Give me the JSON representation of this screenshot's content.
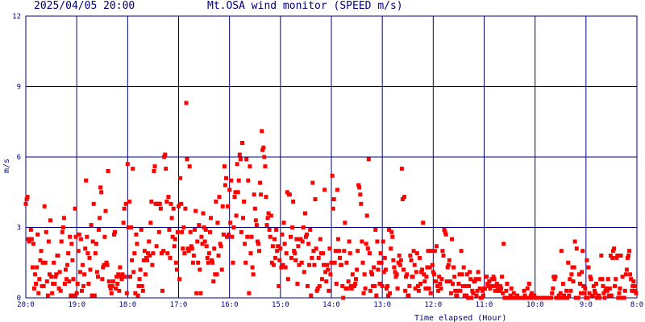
{
  "header": {
    "datetime": "2025/04/05 20:00",
    "title": "Mt.OSA wind monitor (SPEED m/s)"
  },
  "chart_data": {
    "type": "scatter",
    "xlabel": "Time elapsed (Hour)",
    "ylabel": "m/s",
    "x_tick_labels": [
      "20:0",
      "19:0",
      "18:0",
      "17:0",
      "16:0",
      "15:0",
      "14:0",
      "13:0",
      "12:0",
      "11:0",
      "10:0",
      "9:0",
      "8:0"
    ],
    "x_range_hours_elapsed": [
      0,
      12
    ],
    "y_ticks": [
      0,
      3,
      6,
      9,
      12
    ],
    "ylim": [
      0,
      12
    ],
    "grid": true,
    "colors": {
      "grid": "#00007f",
      "points": "#ff0000",
      "text": "#00007f",
      "background": "#ffffff"
    },
    "points_per_hour": 60,
    "speed": [
      4.0,
      4.2,
      4.3,
      2.5,
      2.4,
      2.5,
      2.9,
      2.5,
      1.3,
      2.3,
      0.4,
      1.0,
      0.6,
      1.3,
      2.7,
      0.2,
      0.8,
      1.6,
      2.0,
      0.5,
      1.5,
      0.5,
      3.9,
      1.5,
      2.8,
      0.7,
      0.1,
      2.4,
      1.0,
      3.3,
      0.9,
      0.2,
      0.6,
      1.5,
      0.6,
      0.9,
      1.0,
      1.8,
      1.8,
      0.4,
      1.1,
      0.3,
      2.4,
      2.8,
      3.0,
      3.4,
      0.6,
      1.2,
      0.8,
      1.4,
      1.9,
      0.7,
      2.6,
      0.1,
      2.3,
      1.6,
      0.8,
      0.1,
      3.8,
      2.6,
      0.2,
      0.6,
      2.0,
      2.7,
      1.1,
      2.5,
      0.3,
      1.4,
      0.5,
      1.0,
      2.1,
      5.0,
      2.6,
      1.9,
      0.6,
      1.7,
      1.2,
      3.1,
      0.1,
      2.4,
      4.0,
      0.1,
      1.9,
      2.3,
      1.1,
      0.9,
      2.9,
      3.4,
      4.7,
      4.5,
      0.8,
      1.3,
      1.4,
      2.6,
      3.7,
      1.5,
      1.4,
      5.4,
      0.7,
      0.5,
      0.4,
      0.2,
      0.5,
      0.7,
      2.7,
      2.8,
      0.4,
      0.9,
      0.6,
      1.0,
      0.3,
      1.3,
      0.9,
      0.8,
      1.0,
      3.2,
      3.8,
      0.9,
      4.0,
      0.2,
      5.7,
      3.0,
      4.1,
      0.9,
      3.0,
      1.6,
      5.5,
      1.1,
      1.9,
      0.2,
      2.7,
      2.3,
      0.1,
      0.5,
      0.8,
      1.2,
      2.9,
      0.5,
      0.3,
      1.6,
      2.0,
      1.0,
      1.7,
      1.6,
      1.9,
      2.4,
      1.8,
      3.2,
      4.1,
      1.4,
      1.9,
      5.4,
      5.6,
      4.0,
      2.2,
      4.0,
      4.0,
      2.8,
      4.0,
      3.8,
      1.9,
      0.3,
      2.0,
      6.0,
      6.1,
      5.5,
      4.1,
      1.9,
      4.3,
      2.9,
      1.7,
      4.0,
      3.4,
      2.6,
      3.8,
      2.2,
      2.5,
      1.5,
      1.2,
      2.8,
      3.9,
      0.8,
      5.1,
      4.0,
      2.8,
      2.1,
      3.0,
      1.9,
      3.8,
      8.3,
      5.9,
      2.1,
      2.0,
      5.6,
      2.8,
      2.2,
      2.1,
      1.5,
      1.8,
      2.9,
      3.7,
      0.2,
      2.4,
      1.5,
      3.1,
      1.2,
      0.2,
      2.6,
      2.3,
      3.6,
      3.0,
      2.4,
      2.9,
      2.2,
      1.7,
      1.5,
      1.9,
      2.8,
      3.4,
      1.6,
      1.5,
      0.7,
      2.1,
      1.0,
      4.1,
      1.0,
      3.2,
      1.8,
      4.3,
      2.3,
      2.2,
      1.2,
      3.9,
      2.7,
      5.6,
      4.8,
      5.1,
      2.6,
      3.9,
      2.7,
      4.6,
      3.2,
      5.0,
      2.6,
      1.5,
      3.0,
      4.3,
      4.5,
      3.5,
      5.7,
      4.5,
      5.0,
      6.1,
      5.9,
      2.8,
      6.6,
      3.4,
      4.1,
      2.3,
      1.5,
      5.9,
      2.6,
      5.0,
      0.2,
      5.6,
      1.9,
      2.6,
      1.3,
      1.0,
      4.4,
      3.8,
      3.3,
      3.1,
      2.4,
      2.3,
      2.0,
      4.9,
      4.4,
      7.1,
      6.3,
      6.4,
      6.0,
      5.6,
      4.3,
      3.1,
      3.4,
      3.6,
      2.9,
      2.6,
      3.5,
      1.5,
      2.2,
      1.4,
      2.5,
      1.7,
      2.9,
      2.0,
      2.2,
      0.5,
      1.6,
      2.1,
      1.3,
      2.7,
      1.4,
      3.2,
      2.3,
      1.3,
      1.9,
      4.5,
      0.8,
      4.4,
      4.4,
      2.6,
      1.7,
      3.0,
      4.1,
      2.0,
      1.9,
      1.6,
      2.5,
      0.6,
      2.2,
      1.4,
      2.5,
      2.5,
      1.5,
      2.4,
      3.0,
      1.1,
      3.6,
      2.6,
      2.7,
      0.5,
      2.3,
      1.4,
      2.9,
      0.1,
      1.7,
      4.9,
      2.0,
      1.4,
      4.2,
      2.1,
      0.3,
      0.4,
      1.7,
      0.5,
      2.5,
      1.9,
      0.8,
      1.9,
      1.4,
      4.6,
      1.1,
      0.7,
      1.4,
      1.2,
      0.3,
      2.1,
      1.0,
      1.5,
      5.2,
      3.8,
      4.2,
      1.5,
      2.0,
      0.6,
      4.6,
      2.5,
      2.0,
      1.7,
      1.4,
      1.4,
      0.5,
      0.0,
      2.0,
      3.2,
      0.4,
      1.5,
      0.4,
      0.7,
      2.4,
      1.9,
      0.5,
      0.4,
      1.0,
      0.5,
      0.5,
      0.6,
      0.8,
      1.2,
      2.0,
      4.8,
      4.7,
      4.4,
      4.0,
      2.4,
      1.5,
      0.2,
      1.0,
      0.4,
      2.3,
      3.5,
      2.1,
      5.9,
      1.9,
      0.3,
      1.1,
      1.0,
      0.5,
      1.3,
      0.5,
      2.9,
      0.1,
      2.4,
      1.2,
      1.5,
      0.6,
      1.9,
      1.5,
      0.5,
      2.4,
      1.1,
      1.7,
      1.2,
      0.4,
      0.5,
      0.1,
      2.9,
      0.2,
      2.1,
      2.8,
      2.6,
      1.6,
      1.3,
      1.1,
      0.9,
      1.0,
      0.4,
      1.5,
      1.8,
      1.4,
      1.6,
      5.5,
      4.2,
      1.2,
      4.3,
      0.3,
      0.9,
      1.0,
      0.1,
      0.1,
      0.5,
      1.8,
      1.6,
      0.9,
      0.9,
      2.0,
      1.4,
      0.4,
      1.1,
      1.9,
      0.5,
      0.3,
      1.7,
      0.6,
      1.1,
      1.2,
      3.2,
      1.0,
      0.7,
      0.4,
      0.9,
      1.3,
      2.0,
      0.4,
      1.3,
      0.2,
      2.0,
      1.4,
      1.1,
      1.0,
      2.0,
      0.7,
      2.2,
      0.5,
      0.3,
      0.9,
      0.6,
      0.4,
      0.8,
      2.0,
      1.8,
      2.9,
      2.8,
      2.7,
      0.7,
      1.3,
      1.4,
      1.6,
      0.7,
      0.2,
      2.5,
      0.6,
      1.3,
      0.9,
      0.3,
      0.1,
      0.1,
      0.3,
      0.6,
      1.0,
      0.3,
      2.0,
      1.0,
      0.5,
      1.3,
      0.1,
      0.5,
      0.1,
      1.0,
      0.0,
      0.5,
      1.1,
      0.8,
      0.0,
      0.3,
      0.2,
      0.7,
      0.7,
      0.8,
      0.1,
      0.3,
      1.1,
      0.8,
      0.4,
      0.0,
      0.0,
      0.3,
      0.1,
      0.4,
      0.4,
      0.9,
      0.9,
      0.6,
      0.5,
      0.7,
      0.4,
      0.5,
      0.8,
      0.5,
      0.9,
      0.8,
      0.3,
      0.5,
      0.6,
      0.4,
      0.3,
      0.3,
      0.5,
      0.4,
      0.9,
      0.2,
      2.3,
      0.0,
      0.0,
      0.3,
      0.6,
      0.0,
      0.0,
      0.0,
      0.1,
      0.4,
      0.0,
      0.0,
      0.2,
      0.0,
      0.0,
      0.0,
      0.1,
      0.0,
      0.0,
      0.0,
      0.0,
      0.0,
      0.0,
      0.0,
      0.3,
      0.1,
      0.0,
      0.0,
      0.4,
      0.0,
      0.6,
      0.0,
      0.1,
      0.2,
      0.0,
      0.0,
      0.1,
      0.0,
      0.0,
      0.0,
      0.0,
      0.0,
      0.0,
      0.0,
      0.0,
      0.0,
      0.0,
      0.0,
      0.0,
      0.0,
      0.0,
      0.0,
      0.0,
      0.0,
      0.0,
      0.0,
      0.0,
      0.2,
      0.4,
      0.9,
      0.8,
      0.9,
      0.0,
      0.0,
      0.0,
      0.1,
      0.0,
      0.2,
      2.0,
      0.0,
      0.6,
      0.1,
      0.0,
      0.0,
      0.3,
      0.0,
      1.5,
      0.1,
      0.8,
      0.3,
      1.0,
      1.3,
      0.7,
      1.3,
      2.4,
      0.0,
      2.1,
      0.0,
      0.0,
      1.0,
      0.6,
      0.2,
      1.1,
      2.0,
      0.5,
      0.2,
      0.4,
      0.0,
      1.6,
      0.0,
      1.3,
      0.2,
      0.9,
      0.8,
      0.1,
      0.1,
      0.5,
      0.3,
      0.2,
      0.6,
      0.0,
      0.0,
      0.1,
      0.0,
      0.8,
      1.8,
      0.8,
      0.5,
      0.2,
      0.0,
      0.3,
      0.4,
      0.3,
      0.8,
      0.1,
      0.4,
      1.8,
      0.1,
      1.7,
      2.0,
      2.1,
      0.5,
      0.8,
      1.7,
      1.8,
      0.0,
      0.2,
      0.4,
      1.8,
      0.0,
      0.9,
      0.0,
      0.0,
      0.3,
      1.0,
      1.2,
      1.7,
      1.8,
      2.0,
      1.0,
      0.8,
      0.3,
      0.5,
      0.7,
      0.3,
      0.5,
      0.2
    ]
  }
}
